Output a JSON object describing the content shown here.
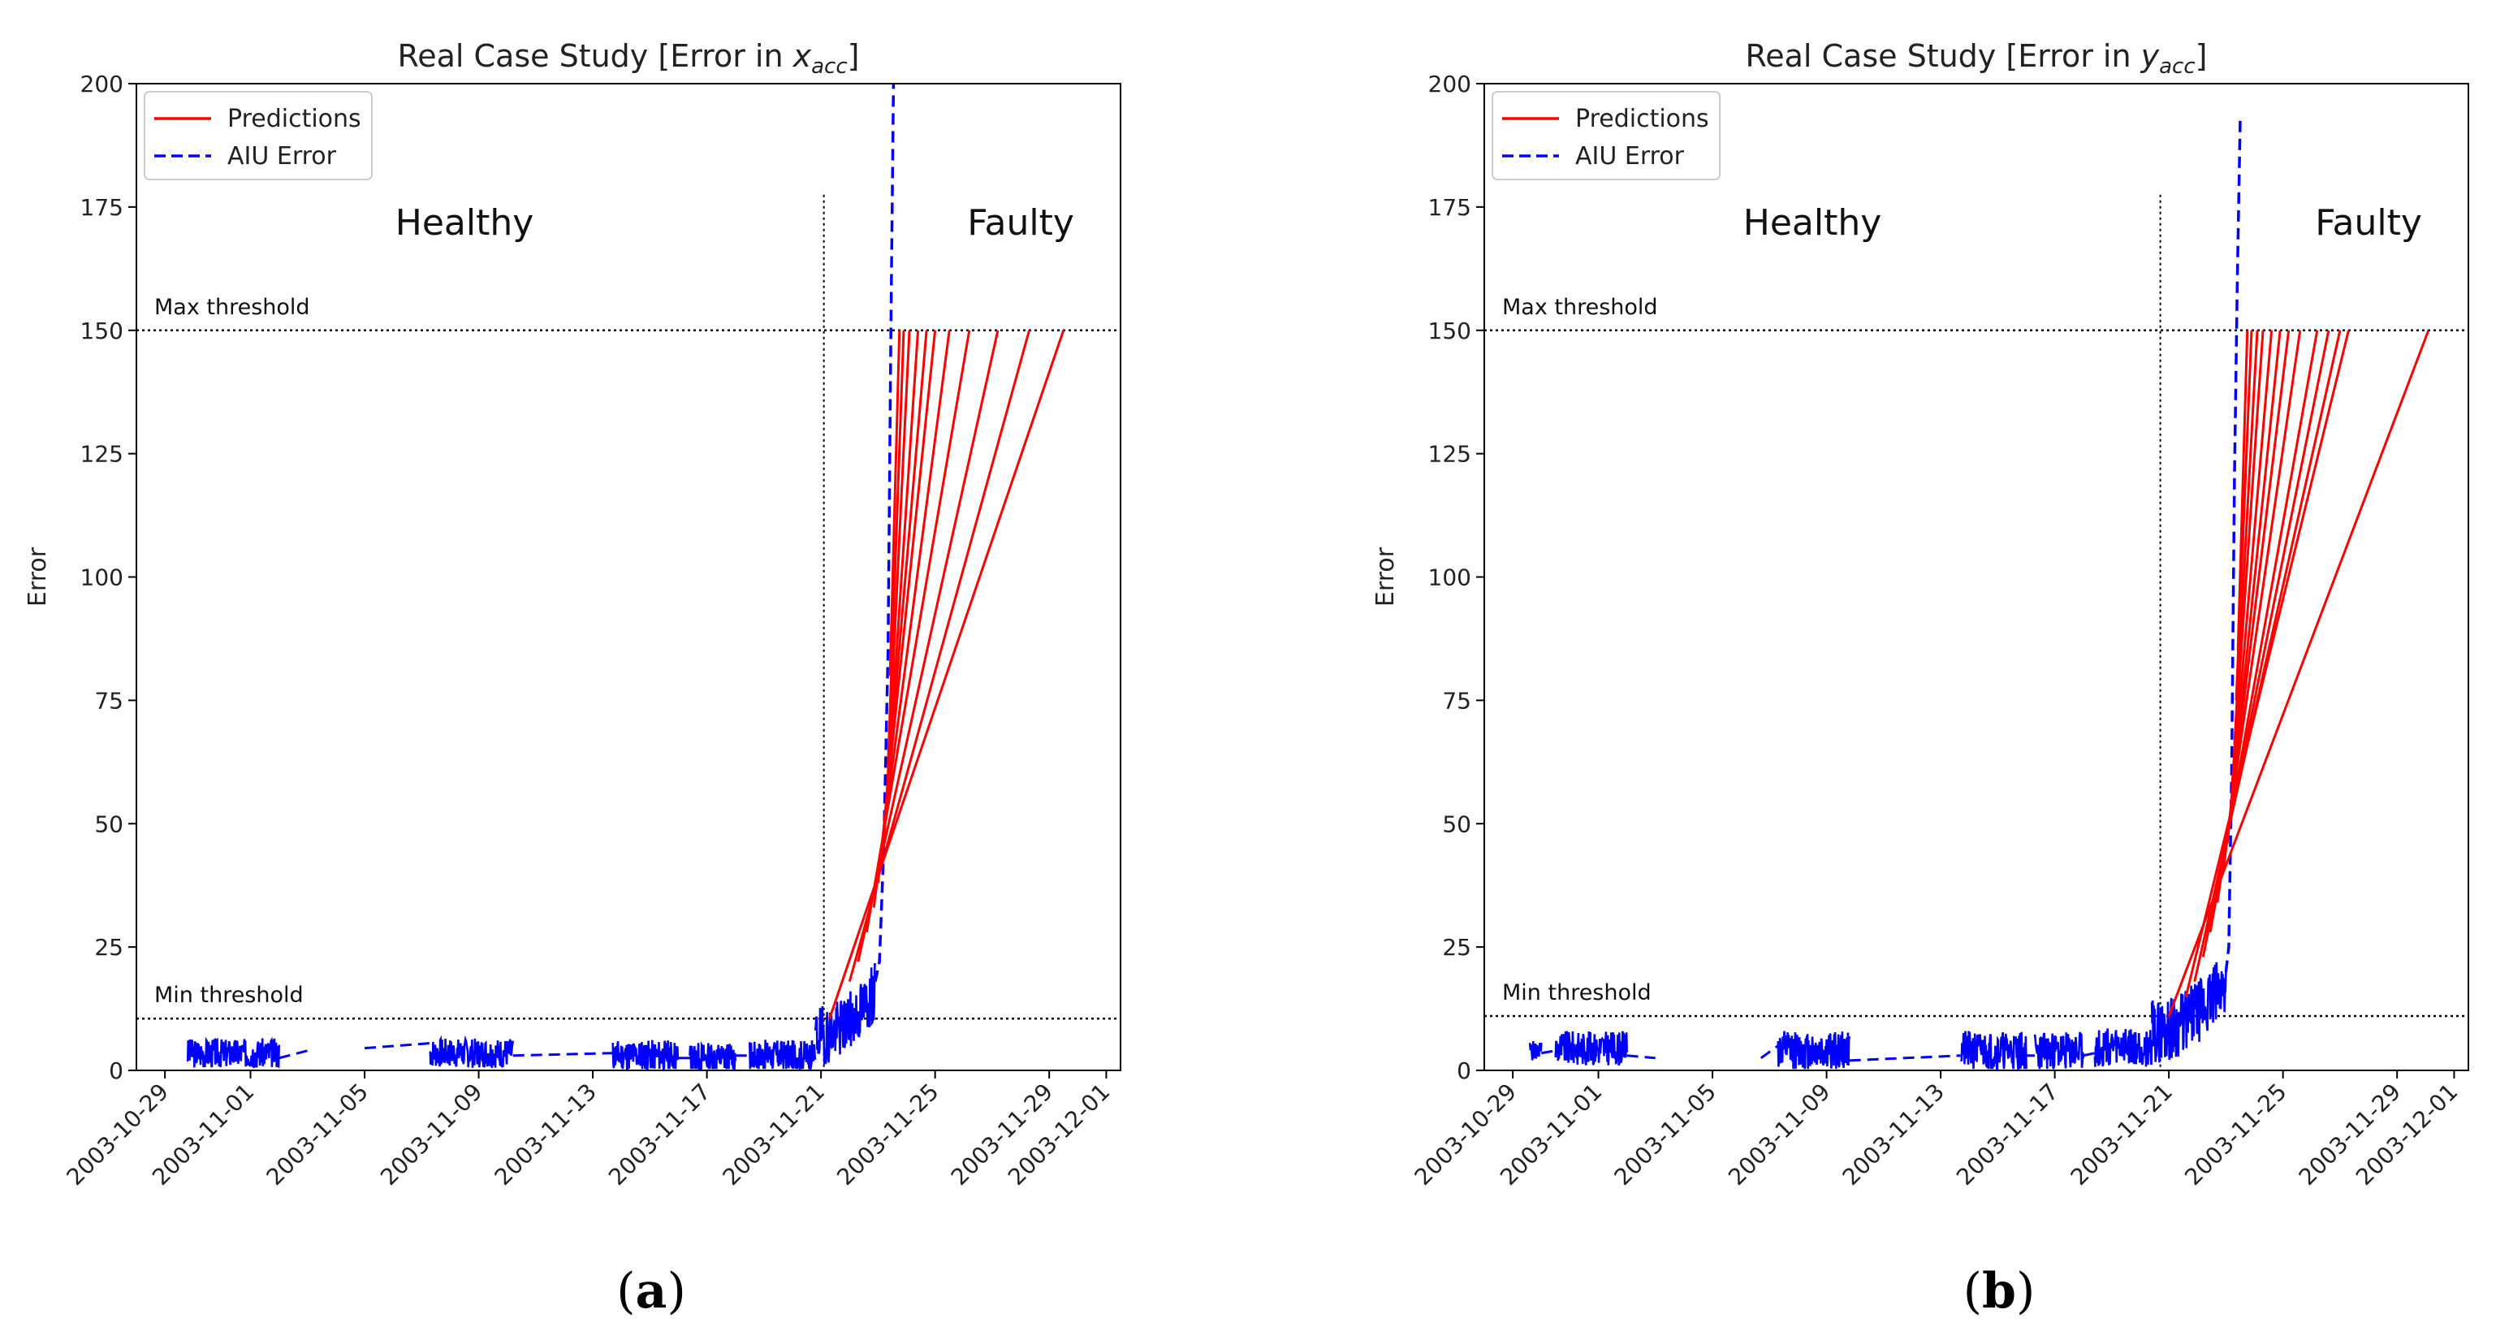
{
  "chart_data": [
    {
      "type": "line",
      "title": "Real Case Study [Error in ",
      "title_symbol": "x",
      "title_subscript": "acc",
      "title_suffix": "]",
      "xlabel": "",
      "ylabel": "Error",
      "ylim": [
        0,
        200
      ],
      "yticks": [
        0,
        25,
        50,
        75,
        100,
        125,
        150,
        175,
        200
      ],
      "xticks": [
        "2003-10-29",
        "2003-11-01",
        "2003-11-05",
        "2003-11-09",
        "2003-11-13",
        "2003-11-17",
        "2003-11-21",
        "2003-11-25",
        "2003-11-29",
        "2003-12-01"
      ],
      "x_days_range": [
        -1.0,
        33.5
      ],
      "legend": {
        "placement": "upper-left",
        "entries": [
          {
            "name": "Predictions",
            "color": "#ff0000",
            "style": "solid"
          },
          {
            "name": "AIU Error",
            "color": "#0000ff",
            "style": "dashed"
          }
        ]
      },
      "regions": [
        {
          "label": "Healthy",
          "x_day": 10.5,
          "y": 172
        },
        {
          "label": "Faulty",
          "x_day": 30.0,
          "y": 172
        }
      ],
      "change_day": 23.1,
      "change_top": 177.5,
      "thresholds": [
        {
          "label": "Max threshold",
          "y": 150
        },
        {
          "label": "Min threshold",
          "y": 10.5
        }
      ],
      "series": [
        {
          "name": "AIU Error",
          "color": "#0000ff",
          "dashed": true,
          "segments": [
            {
              "x0": 0.8,
              "x1": 4.0,
              "base": 3.5,
              "amp": 3.0,
              "seed": 3
            },
            {
              "x0": 9.3,
              "x1": 12.2,
              "base": 3.5,
              "amp": 3.0,
              "seed": 7
            },
            {
              "x0": 15.7,
              "x1": 18.0,
              "base": 3.0,
              "amp": 3.2,
              "seed": 11
            },
            {
              "x0": 18.4,
              "x1": 20.0,
              "base": 2.5,
              "amp": 3.2,
              "seed": 13
            },
            {
              "x0": 20.5,
              "x1": 22.8,
              "base": 3.0,
              "amp": 3.2,
              "seed": 17
            },
            {
              "x0": 22.8,
              "x1": 24.9,
              "base": 7.0,
              "amp": 6.0,
              "seed": 19,
              "rise": 9
            }
          ],
          "gap_points": [
            [
              4.0,
              2.5
            ],
            [
              5.0,
              4.0
            ],
            [
              7.0,
              4.5
            ],
            [
              9.3,
              5.5
            ],
            [
              12.2,
              3.0
            ],
            [
              15.7,
              3.5
            ],
            [
              18.0,
              2.5
            ],
            [
              18.4,
              2.5
            ],
            [
              20.0,
              3.0
            ],
            [
              20.5,
              3.0
            ]
          ],
          "spike": [
            [
              24.9,
              18
            ],
            [
              25.05,
              22
            ],
            [
              25.2,
              45
            ],
            [
              25.35,
              85
            ],
            [
              25.45,
              150
            ],
            [
              25.55,
              205
            ]
          ]
        },
        {
          "name": "Predictions",
          "color": "#ff0000",
          "lines": [
            [
              [
                23.3,
                10.5
              ],
              [
                31.5,
                150
              ]
            ],
            [
              [
                24.0,
                18
              ],
              [
                30.3,
                150
              ]
            ],
            [
              [
                24.3,
                22
              ],
              [
                29.2,
                150
              ]
            ],
            [
              [
                24.6,
                28
              ],
              [
                28.2,
                150
              ]
            ],
            [
              [
                24.85,
                33
              ],
              [
                27.5,
                150
              ]
            ],
            [
              [
                25.0,
                38
              ],
              [
                27.0,
                150
              ]
            ],
            [
              [
                25.1,
                42
              ],
              [
                26.7,
                150
              ]
            ],
            [
              [
                25.2,
                46
              ],
              [
                26.4,
                150
              ]
            ],
            [
              [
                25.28,
                52
              ],
              [
                26.1,
                150
              ]
            ],
            [
              [
                25.35,
                62
              ],
              [
                25.9,
                150
              ]
            ],
            [
              [
                25.42,
                80
              ],
              [
                25.75,
                150
              ]
            ]
          ]
        }
      ]
    },
    {
      "type": "line",
      "title": "Real Case Study [Error in ",
      "title_symbol": "y",
      "title_subscript": "acc",
      "title_suffix": "]",
      "xlabel": "",
      "ylabel": "Error",
      "ylim": [
        0,
        200
      ],
      "yticks": [
        0,
        25,
        50,
        75,
        100,
        125,
        150,
        175,
        200
      ],
      "xticks": [
        "2003-10-29",
        "2003-11-01",
        "2003-11-05",
        "2003-11-09",
        "2003-11-13",
        "2003-11-17",
        "2003-11-21",
        "2003-11-25",
        "2003-11-29",
        "2003-12-01"
      ],
      "x_days_range": [
        -1.0,
        33.5
      ],
      "legend": {
        "placement": "upper-left",
        "entries": [
          {
            "name": "Predictions",
            "color": "#ff0000",
            "style": "solid"
          },
          {
            "name": "AIU Error",
            "color": "#0000ff",
            "style": "dashed"
          }
        ]
      },
      "regions": [
        {
          "label": "Healthy",
          "x_day": 10.5,
          "y": 172
        },
        {
          "label": "Faulty",
          "x_day": 30.0,
          "y": 172
        }
      ],
      "change_day": 22.7,
      "change_top": 177.5,
      "thresholds": [
        {
          "label": "Max threshold",
          "y": 150
        },
        {
          "label": "Min threshold",
          "y": 11
        }
      ],
      "series": [
        {
          "name": "AIU Error",
          "color": "#0000ff",
          "dashed": true,
          "segments": [
            {
              "x0": 0.6,
              "x1": 1.0,
              "base": 4.0,
              "amp": 2.0,
              "seed": 5
            },
            {
              "x0": 1.5,
              "x1": 4.0,
              "base": 4.5,
              "amp": 3.5,
              "seed": 9
            },
            {
              "x0": 9.3,
              "x1": 11.8,
              "base": 4.0,
              "amp": 4.0,
              "seed": 12
            },
            {
              "x0": 15.7,
              "x1": 18.0,
              "base": 4.0,
              "amp": 4.0,
              "seed": 21
            },
            {
              "x0": 18.3,
              "x1": 20.0,
              "base": 3.8,
              "amp": 4.0,
              "seed": 23
            },
            {
              "x0": 20.4,
              "x1": 22.4,
              "base": 4.5,
              "amp": 4.0,
              "seed": 27
            },
            {
              "x0": 22.4,
              "x1": 25.0,
              "base": 8.0,
              "amp": 6.5,
              "seed": 29,
              "rise": 10
            }
          ],
          "gap_points": [
            [
              1.0,
              3.5
            ],
            [
              1.5,
              4.0
            ],
            [
              4.0,
              3.0
            ],
            [
              5.0,
              2.5
            ],
            [
              8.7,
              2.5
            ],
            [
              9.3,
              5.0
            ],
            [
              11.8,
              2.0
            ],
            [
              15.7,
              3.0
            ],
            [
              18.0,
              3.0
            ],
            [
              18.3,
              3.0
            ],
            [
              20.0,
              3.0
            ],
            [
              20.4,
              3.5
            ]
          ],
          "spike": [
            [
              25.0,
              20
            ],
            [
              25.1,
              25
            ],
            [
              25.2,
              60
            ],
            [
              25.3,
              120
            ],
            [
              25.4,
              160
            ],
            [
              25.5,
              193
            ]
          ]
        },
        {
          "name": "Predictions",
          "color": "#ff0000",
          "lines": [
            [
              [
                23.0,
                11
              ],
              [
                32.1,
                150
              ]
            ],
            [
              [
                23.6,
                15
              ],
              [
                29.3,
                150
              ]
            ],
            [
              [
                23.9,
                18
              ],
              [
                29.0,
                150
              ]
            ],
            [
              [
                24.2,
                23
              ],
              [
                28.6,
                150
              ]
            ],
            [
              [
                24.45,
                28
              ],
              [
                28.2,
                150
              ]
            ],
            [
              [
                24.7,
                34
              ],
              [
                27.6,
                150
              ]
            ],
            [
              [
                24.9,
                40
              ],
              [
                27.2,
                150
              ]
            ],
            [
              [
                25.05,
                46
              ],
              [
                26.9,
                150
              ]
            ],
            [
              [
                25.15,
                52
              ],
              [
                26.6,
                150
              ]
            ],
            [
              [
                25.22,
                58
              ],
              [
                26.3,
                150
              ]
            ],
            [
              [
                25.3,
                66
              ],
              [
                26.1,
                150
              ]
            ],
            [
              [
                25.36,
                75
              ],
              [
                25.9,
                150
              ]
            ],
            [
              [
                25.42,
                85
              ],
              [
                25.75,
                150
              ]
            ]
          ]
        }
      ]
    }
  ],
  "panel_labels": [
    "a",
    "b"
  ]
}
